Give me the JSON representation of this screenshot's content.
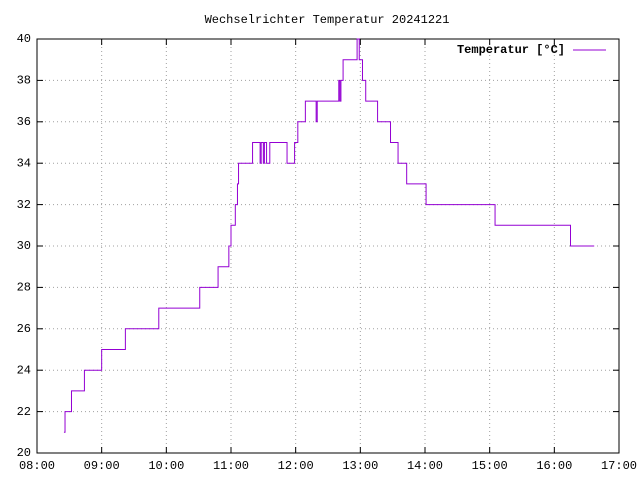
{
  "chart_data": {
    "type": "step-line",
    "title": "Wechselrichter Temperatur 20241221",
    "x": [
      "08:25",
      "08:26",
      "08:32",
      "08:44",
      "09:00",
      "09:22",
      "09:53",
      "10:31",
      "10:48",
      "10:58",
      "11:00",
      "11:04",
      "11:06",
      "11:07",
      "11:20",
      "11:27",
      "11:28",
      "11:30",
      "11:31",
      "11:33",
      "11:36",
      "11:52",
      "11:59",
      "12:02",
      "12:09",
      "12:19",
      "12:20",
      "12:40",
      "12:41",
      "12:42",
      "12:44",
      "12:52",
      "12:57",
      "12:59",
      "13:02",
      "13:05",
      "13:16",
      "13:28",
      "13:35",
      "13:43",
      "14:01",
      "15:05",
      "16:15",
      "16:37"
    ],
    "series": [
      {
        "name": "Temperatur [°C]",
        "color": "#9400d3",
        "values": [
          21,
          22,
          23,
          24,
          25,
          26,
          27,
          28,
          29,
          30,
          31,
          32,
          33,
          34,
          35,
          34,
          35,
          34,
          35,
          34,
          35,
          34,
          35,
          36,
          37,
          36,
          37,
          38,
          37,
          38,
          39,
          39,
          40,
          39,
          38,
          37,
          36,
          35,
          34,
          33,
          32,
          31,
          30,
          30
        ]
      }
    ],
    "xlim": [
      "08:00",
      "17:00"
    ],
    "xticks": [
      "08:00",
      "09:00",
      "10:00",
      "11:00",
      "12:00",
      "13:00",
      "14:00",
      "15:00",
      "16:00",
      "17:00"
    ],
    "ylim": [
      20,
      40
    ],
    "yticks": [
      20,
      22,
      24,
      26,
      28,
      30,
      32,
      34,
      36,
      38,
      40
    ],
    "grid": true,
    "legend": "top-right"
  }
}
